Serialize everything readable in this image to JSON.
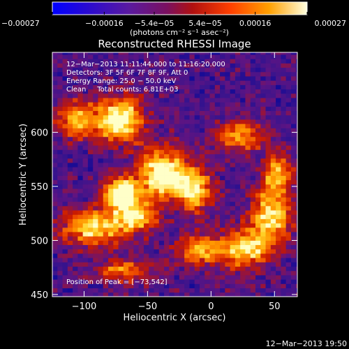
{
  "chart_data": {
    "type": "heatmap",
    "title": "Reconstructed RHESSI Image",
    "xlabel": "Heliocentric X (arcsec)",
    "ylabel": "Heliocentric Y (arcsec)",
    "xlim": [
      -125,
      68
    ],
    "ylim": [
      448,
      674
    ],
    "x_ticks": [
      -100,
      -50,
      0,
      50
    ],
    "x_tick_labels": [
      "−100",
      "−50",
      "0",
      "50"
    ],
    "y_ticks": [
      450,
      500,
      550,
      600
    ],
    "y_tick_labels": [
      "450",
      "500",
      "550",
      "600"
    ],
    "colorbar": {
      "min": -0.00027,
      "max": 0.00027,
      "ticks": [
        -0.00027,
        -0.00016,
        -5.4e-05,
        5.4e-05,
        0.00016,
        0.00027
      ],
      "tick_labels": [
        "−0.00027",
        "−0.00016",
        "−5.4e−05",
        "5.4e−05",
        "0.00016",
        "0.00027"
      ],
      "unit_label": "(photons cm⁻² s⁻¹ asec⁻²)",
      "colors": [
        "#0000ff",
        "#3a0ab0",
        "#5a1aa0",
        "#8a1a4a",
        "#c01000",
        "#ff6000",
        "#ffc000",
        "#ffffe0"
      ]
    },
    "annotations": [
      "12−Mar−2013 11:11:44.000 to 11:16:20.000",
      "Detectors: 3F 5F 6F 7F 8F 9F, Att 0",
      "Energy Range: 25.0 − 50.0 keV",
      "Clean     Total counts: 6.81E+03"
    ],
    "peak_label": "Position of Peak = [−73,542]",
    "peak": [
      -73,
      542
    ],
    "timestamp": "12−Mar−2013 19:50",
    "grid": false,
    "cell_size_arcsec": 4,
    "emission_sources": [
      {
        "x": -75,
        "y": 610,
        "sx": 14,
        "sy": 14,
        "a": 0.95
      },
      {
        "x": -40,
        "y": 560,
        "sx": 14,
        "sy": 16,
        "a": 0.95
      },
      {
        "x": -73,
        "y": 542,
        "sx": 10,
        "sy": 10,
        "a": 1.0
      },
      {
        "x": -95,
        "y": 510,
        "sx": 16,
        "sy": 12,
        "a": 0.75
      },
      {
        "x": -62,
        "y": 520,
        "sx": 12,
        "sy": 10,
        "a": 0.75
      },
      {
        "x": -15,
        "y": 545,
        "sx": 10,
        "sy": 14,
        "a": 0.7
      },
      {
        "x": -10,
        "y": 490,
        "sx": 14,
        "sy": 10,
        "a": 0.65
      },
      {
        "x": 25,
        "y": 490,
        "sx": 12,
        "sy": 12,
        "a": 0.75
      },
      {
        "x": 45,
        "y": 520,
        "sx": 12,
        "sy": 18,
        "a": 0.75
      },
      {
        "x": 50,
        "y": 560,
        "sx": 8,
        "sy": 14,
        "a": 0.65
      },
      {
        "x": 20,
        "y": 595,
        "sx": 14,
        "sy": 10,
        "a": 0.6
      },
      {
        "x": -110,
        "y": 610,
        "sx": 10,
        "sy": 12,
        "a": 0.6
      },
      {
        "x": -70,
        "y": 470,
        "sx": 16,
        "sy": 8,
        "a": 0.55
      }
    ]
  }
}
